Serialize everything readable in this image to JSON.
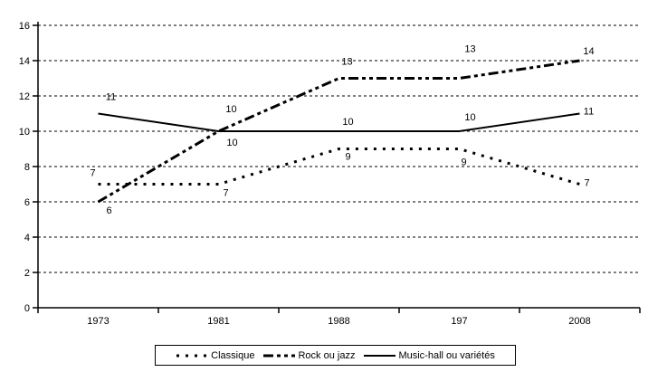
{
  "chart": {
    "background_color": "#ffffff",
    "line_color": "#000000",
    "text_color": "#000000",
    "chart_data": {
      "type": "line",
      "title": "",
      "xlabel": "",
      "ylabel": "",
      "categories": [
        "1973",
        "1981",
        "1988",
        "197",
        "2008"
      ],
      "series": [
        {
          "name": "Classique",
          "style": "dotted",
          "values": [
            7,
            7,
            9,
            9,
            7
          ],
          "label_offsets": [
            [
              -6,
              -13
            ],
            [
              8,
              9
            ],
            [
              10,
              8
            ],
            [
              5,
              14
            ],
            [
              8,
              -2
            ]
          ]
        },
        {
          "name": "Rock ou jazz",
          "style": "dashdot",
          "values": [
            6,
            10,
            13,
            13,
            14
          ],
          "label_offsets": [
            [
              12,
              9
            ],
            [
              14,
              -25
            ],
            [
              9,
              -19
            ],
            [
              12,
              -33
            ],
            [
              10,
              -11
            ]
          ]
        },
        {
          "name": "Music-hall ou variétés",
          "style": "solid",
          "values": [
            11,
            10,
            10,
            10,
            11
          ],
          "label_offsets": [
            [
              14,
              -19
            ],
            [
              15,
              12
            ],
            [
              10,
              -11
            ],
            [
              12,
              -16
            ],
            [
              10,
              -3
            ]
          ]
        }
      ],
      "ylim": [
        0,
        16
      ],
      "y_ticks": [
        0,
        2,
        4,
        6,
        8,
        10,
        12,
        14,
        16
      ],
      "grid": "horizontal-dashed",
      "legend_position": "bottom"
    }
  }
}
